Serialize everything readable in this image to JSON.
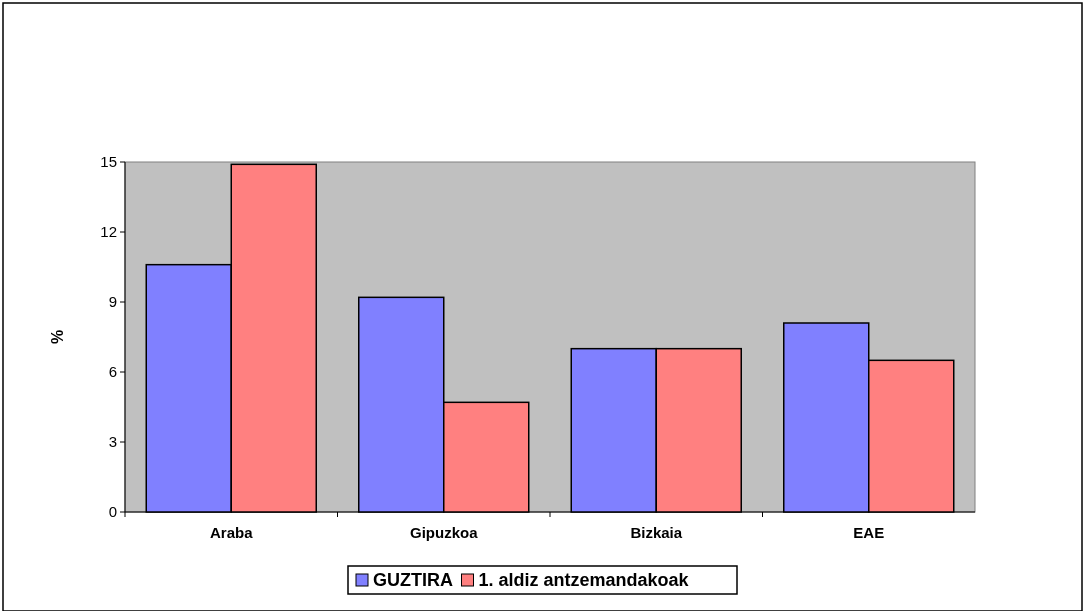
{
  "chart_data": {
    "type": "bar",
    "ylabel": "%",
    "categories": [
      "Araba",
      "Gipuzkoa",
      "Bizkaia",
      "EAE"
    ],
    "series": [
      {
        "name": "GUZTIRA",
        "color": "#8080ff",
        "values": [
          10.6,
          9.2,
          7.0,
          8.1
        ]
      },
      {
        "name": "1. aldiz antzemandakoak",
        "color": "#ff8080",
        "values": [
          14.9,
          4.7,
          7.0,
          6.5
        ]
      }
    ],
    "ylim": [
      0,
      15
    ],
    "yticks": [
      0,
      3,
      6,
      9,
      12,
      15
    ],
    "grid": false,
    "legend": "bottom"
  }
}
